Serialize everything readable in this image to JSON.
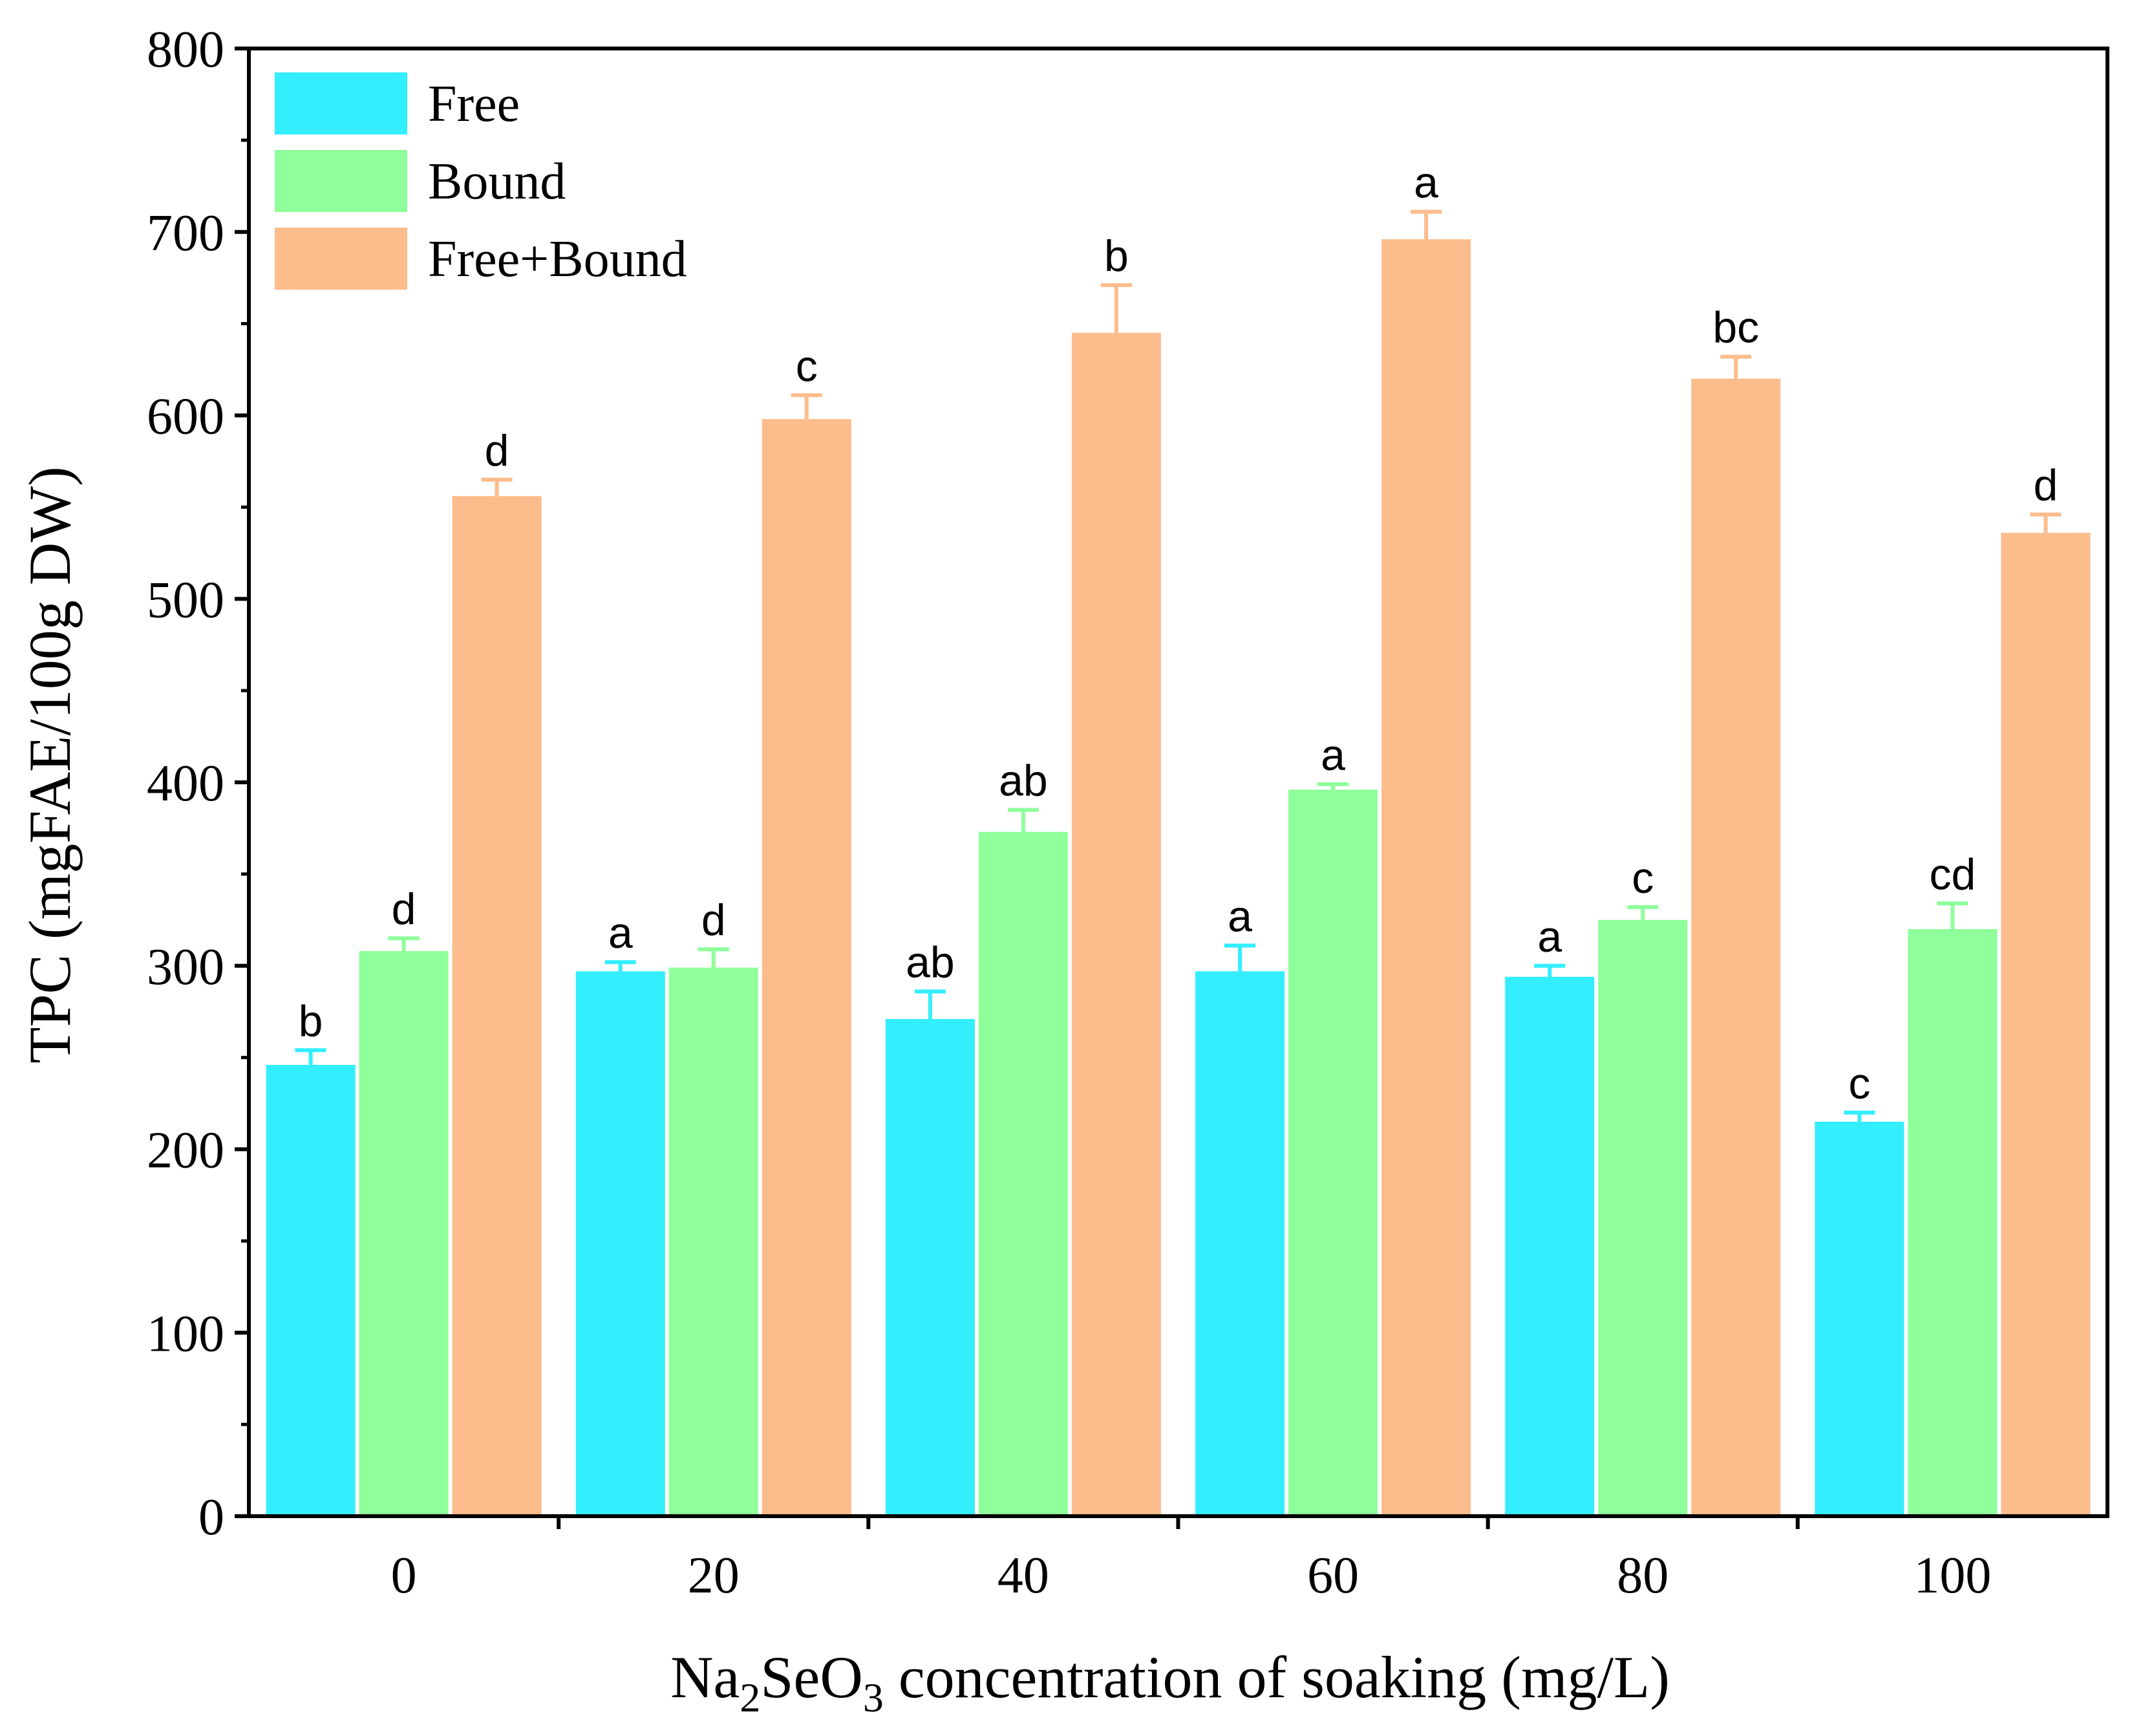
{
  "chart_data": {
    "type": "bar",
    "categories": [
      "0",
      "20",
      "40",
      "60",
      "80",
      "100"
    ],
    "series": [
      {
        "name": "Free",
        "color": "#33eeff",
        "values": [
          246,
          297,
          271,
          297,
          294,
          215
        ],
        "errors": [
          8,
          5,
          15,
          14,
          6,
          5
        ],
        "labels": [
          "b",
          "a",
          "ab",
          "a",
          "a",
          "c"
        ]
      },
      {
        "name": "Bound",
        "color": "#8eff9a",
        "values": [
          308,
          299,
          373,
          396,
          325,
          320
        ],
        "errors": [
          7,
          10,
          12,
          3,
          7,
          14
        ],
        "labels": [
          "d",
          "d",
          "ab",
          "a",
          "c",
          "cd"
        ]
      },
      {
        "name": "Free+Bound",
        "color": "#fdbc8c",
        "values": [
          556,
          598,
          645,
          696,
          620,
          536
        ],
        "errors": [
          9,
          13,
          26,
          15,
          12,
          10
        ],
        "labels": [
          "d",
          "c",
          "b",
          "a",
          "bc",
          "d"
        ]
      }
    ],
    "yticks": [
      "0",
      "100",
      "200",
      "300",
      "400",
      "500",
      "600",
      "700",
      "800"
    ],
    "ylim": [
      0,
      800
    ],
    "ylabel": "TPC (mgFAE/100g DW)",
    "xlabel": {
      "part1": "Na",
      "sub1": "2",
      "part2": "SeO",
      "sub2": "3",
      "part3": " concentration of soaking (mg/L)"
    },
    "legend_position": "top-left",
    "grid": false
  }
}
